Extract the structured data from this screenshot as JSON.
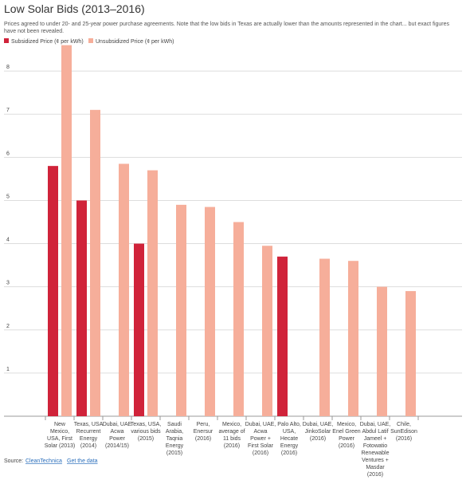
{
  "chart_data": {
    "type": "bar",
    "title": "Low Solar Bids (2013–2016)",
    "subtitle": [
      "Prices agreed to under 20- and 25-year power purchase agreements. Note that the low bids in Texas are actually lower than the amounts represented in the chart... but exact figures",
      "have not been revealed."
    ],
    "categories": [
      [
        "New",
        "Mexico,",
        "USA, First",
        "Solar (2013)"
      ],
      [
        "Texas, USA",
        "Recurrent",
        "Energy",
        "(2014)"
      ],
      [
        "Dubai, UAE",
        "Acwa",
        "Power",
        "(2014/15)"
      ],
      [
        "Texas, USA,",
        "various bids",
        "(2015)"
      ],
      [
        "Saudi",
        "Arabia,",
        "Taqnia",
        "Energy",
        "(2015)"
      ],
      [
        "Peru,",
        "Enersur",
        "(2016)"
      ],
      [
        "Mexico,",
        "average of",
        "11 bids",
        "(2016)"
      ],
      [
        "Dubai, UAE,",
        "Acwa",
        "Power +",
        "First Solar",
        "(2016)"
      ],
      [
        "Palo Alto,",
        "USA,",
        "Hecate",
        "Energy",
        "(2016)"
      ],
      [
        "Dubai, UAE,",
        "JinkoSolar",
        "(2016)"
      ],
      [
        "Mexico,",
        "Enel Green",
        "Power",
        "(2016)"
      ],
      [
        "Dubai, UAE,",
        "Abdul Latif",
        "Jameel +",
        "Fotowatio",
        "Renewable",
        "Ventures +",
        "Masdar",
        "(2016)"
      ],
      [
        "Chile,",
        "SunEdison",
        "(2016)"
      ]
    ],
    "series": [
      {
        "name": "Subsidized Price (¢ per kWh)",
        "color": "#d0233a",
        "values": [
          5.8,
          5.0,
          null,
          4.0,
          null,
          null,
          null,
          null,
          3.7,
          null,
          null,
          null,
          null
        ]
      },
      {
        "name": "Unsubsidized Price (¢ per kWh)",
        "color": "#f6ae9a",
        "values": [
          8.6,
          7.1,
          5.85,
          5.7,
          4.9,
          4.85,
          4.5,
          3.95,
          null,
          3.65,
          3.6,
          3.0,
          2.9
        ]
      }
    ],
    "ylim": [
      0,
      9
    ],
    "yticks": [
      1,
      2,
      3,
      4,
      5,
      6,
      7,
      8
    ],
    "grid": true,
    "source": {
      "label": "Source:",
      "name": "CleanTechnica",
      "link": "Get the data"
    }
  }
}
